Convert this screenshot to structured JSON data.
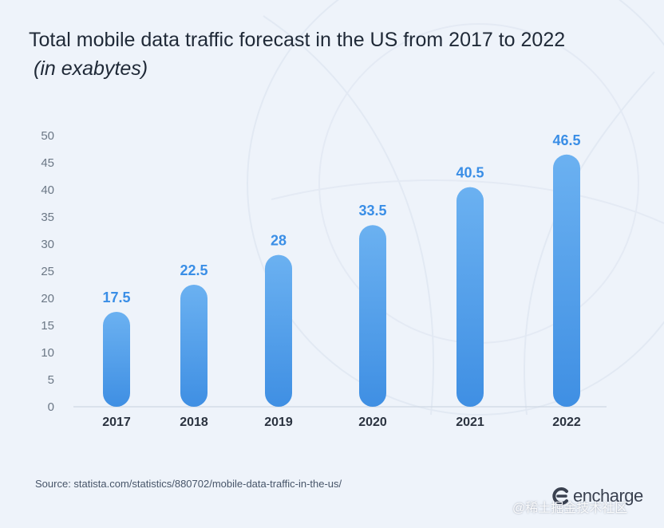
{
  "chart_data": {
    "type": "bar",
    "title": "Total mobile data traffic forecast in the US from 2017 to 2022",
    "subtitle": "(in exabytes)",
    "categories": [
      "2017",
      "2018",
      "2019",
      "2020",
      "2021",
      "2022"
    ],
    "values": [
      17.5,
      22.5,
      28,
      33.5,
      40.5,
      46.5
    ],
    "value_labels": [
      "17.5",
      "22.5",
      "28",
      "33.5",
      "40.5",
      "46.5"
    ],
    "ylim": [
      0,
      50
    ],
    "yticks": [
      "0",
      "5",
      "10",
      "15",
      "20",
      "25",
      "30",
      "35",
      "40",
      "45",
      "50"
    ],
    "xlabel": "",
    "ylabel": "",
    "grid": false,
    "bar_color_top": "#6bb1f1",
    "bar_color_bottom": "#3f8fe3",
    "label_color": "#3a8ee6"
  },
  "source": "Source: statista.com/statistics/880702/mobile-data-traffic-in-the-us/",
  "brand": {
    "name": "encharge",
    "icon": "encharge-logo-icon"
  },
  "watermark": "@稀土掘金技术社区"
}
